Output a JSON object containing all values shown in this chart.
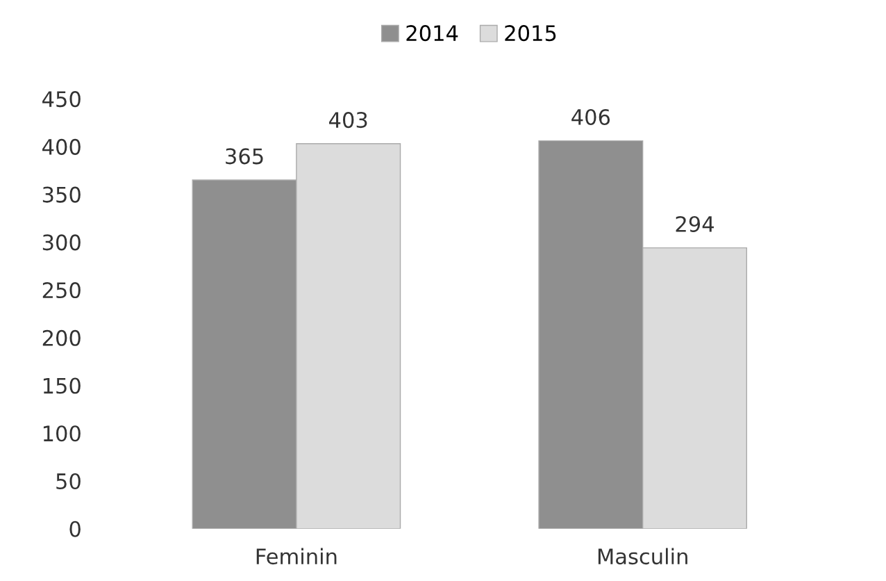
{
  "chart_data": {
    "type": "bar",
    "categories": [
      "Feminin",
      "Masculin"
    ],
    "series": [
      {
        "name": "2014",
        "color": "#8f8f8f",
        "values": [
          365,
          406
        ]
      },
      {
        "name": "2015",
        "color": "#dcdcdc",
        "values": [
          403,
          294
        ]
      }
    ],
    "ylim": [
      0,
      450
    ],
    "yticks": [
      0,
      50,
      100,
      150,
      200,
      250,
      300,
      350,
      400,
      450
    ],
    "data_labels": true,
    "legend": "top",
    "grid": false
  }
}
